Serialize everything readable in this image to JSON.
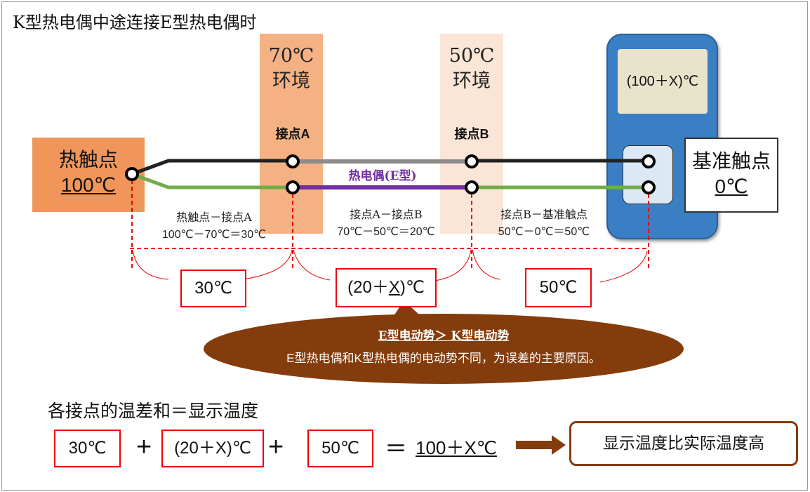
{
  "title": "K型热电偶中途连接E型热电偶时",
  "env_a": {
    "temp": "70℃",
    "label": "环境"
  },
  "env_b": {
    "temp": "50℃",
    "label": "环境"
  },
  "junction_a": "接点A",
  "junction_b": "接点B",
  "hot_junction": {
    "label": "热触点",
    "temp": "100℃"
  },
  "ref_junction": {
    "label": "基准触点",
    "temp": "0℃"
  },
  "meter_display": "(100＋X)℃",
  "thermocouple_label": "热电偶(E型)",
  "segments": [
    {
      "name": "热触点－接点A",
      "calc": "100℃－70℃＝30℃",
      "result": "30℃"
    },
    {
      "name": "接点A－接点B",
      "calc": "70℃－50℃＝20℃",
      "result_prefix": "(20＋",
      "result_x": "X",
      "result_suffix": ")℃"
    },
    {
      "name": "接点B－基准触点",
      "calc": "50℃－0℃＝50℃",
      "result": "50℃"
    }
  ],
  "callout": {
    "headline": "E型电动势＞ K型电动势",
    "text": "E型热电偶和K型热电偶的电动势不同，为误差的主要原因。"
  },
  "equation": {
    "heading": "各接点的温差和＝显示温度",
    "term1": "30℃",
    "plus1": "+",
    "term2": "(20＋X)℃",
    "plus2": "+",
    "term3": "50℃",
    "equals": "＝",
    "total": "100＋X℃",
    "conclusion": "显示温度比实际温度高"
  },
  "colors": {
    "hot": "#f0965a",
    "env_a": "#f4b183",
    "env_b": "#fbe5d6",
    "meter": "#3a7ec4",
    "e_wire": "#7030a0",
    "k_wire_pos": "#222222",
    "k_wire_neg": "#70ad47",
    "callout": "#843c0c",
    "highlight": "#ff0000"
  }
}
